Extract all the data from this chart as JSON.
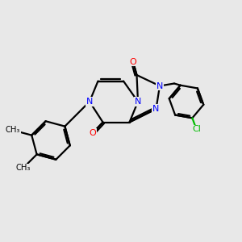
{
  "background_color": "#e8e8e8",
  "bond_color": "#000000",
  "nitrogen_color": "#0000ff",
  "oxygen_color": "#ff0000",
  "chlorine_color": "#00bb00",
  "line_width": 1.6,
  "figsize": [
    3.0,
    3.0
  ],
  "dpi": 100,
  "xlim": [
    0,
    10
  ],
  "ylim": [
    0,
    10
  ]
}
